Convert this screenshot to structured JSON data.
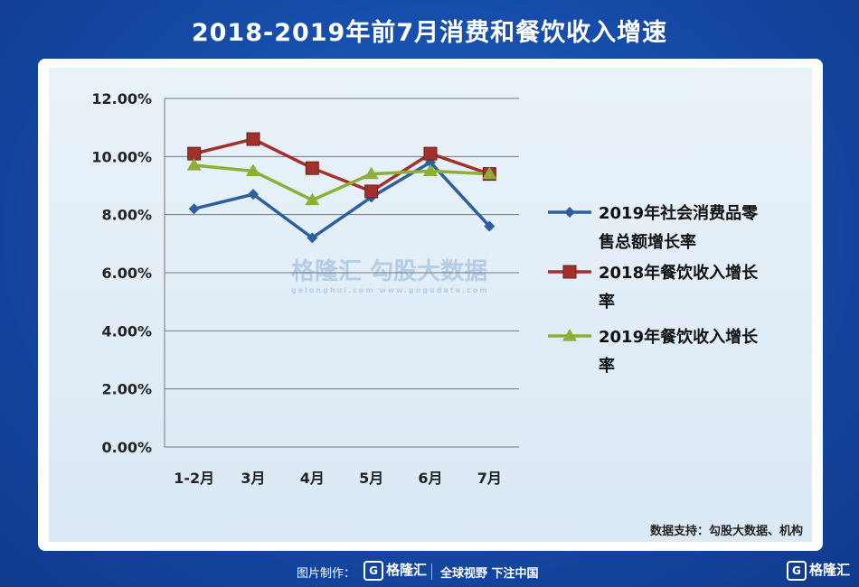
{
  "title": "2018-2019年前7月消费和餐饮收入增速",
  "watermark": {
    "brand": "格隆汇",
    "brand_url": "gelonghui.com",
    "partner": "勾股大数据",
    "partner_url": "www.gogudata.com"
  },
  "source": "数据支持：勾股大数据、机构",
  "footer": {
    "credit": "图片制作：",
    "logo_text": "格隆汇",
    "slogan": "全球视野 下注中国",
    "corner_logo": "格隆汇",
    "logo_glyph": "G"
  },
  "colors": {
    "series1": "#2b5f9e",
    "series2": "#a3302c",
    "series3": "#8fae38",
    "grid": "#777777"
  },
  "chart_data": {
    "type": "line",
    "title": "",
    "xlabel": "",
    "ylabel": "",
    "categories": [
      "1-2月",
      "3月",
      "4月",
      "5月",
      "6月",
      "7月"
    ],
    "y_ticks": [
      "0.00%",
      "2.00%",
      "4.00%",
      "6.00%",
      "8.00%",
      "10.00%",
      "12.00%"
    ],
    "ylim": [
      0,
      12
    ],
    "grid": true,
    "legend_position": "right",
    "series": [
      {
        "name_lines": [
          "2019年社会消费品零",
          "售总额增长率"
        ],
        "marker": "diamond",
        "values": [
          8.2,
          8.7,
          7.2,
          8.6,
          9.8,
          7.6
        ]
      },
      {
        "name_lines": [
          "2018年餐饮收入增长",
          "率"
        ],
        "marker": "square",
        "values": [
          10.1,
          10.6,
          9.6,
          8.8,
          10.1,
          9.4
        ]
      },
      {
        "name_lines": [
          "2019年餐饮收入增长",
          "率"
        ],
        "marker": "triangle",
        "values": [
          9.7,
          9.5,
          8.5,
          9.4,
          9.5,
          9.4
        ]
      }
    ]
  }
}
